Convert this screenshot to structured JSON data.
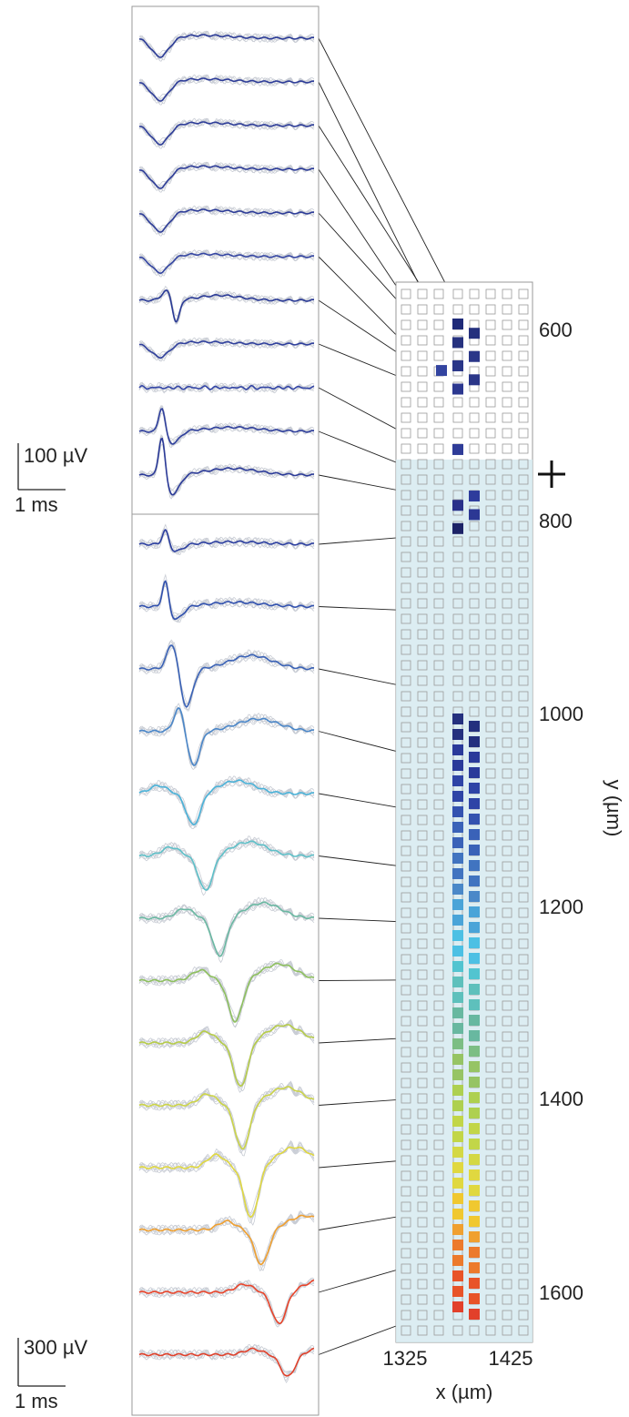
{
  "chart_data": {
    "type": "line",
    "description_free": true,
    "scale_bars": {
      "top": {
        "amplitude": "100 µV",
        "time": "1 ms"
      },
      "bottom": {
        "amplitude": "300 µV",
        "time": "1 ms"
      }
    },
    "probe_axes": {
      "xlabel": "x (µm)",
      "ylabel": "y (µm)",
      "x_ticks": [
        "1325",
        "1425"
      ],
      "y_ticks": [
        "600",
        "800",
        "1000",
        "1200",
        "1400",
        "1600"
      ],
      "ylim": [
        510,
        1650
      ]
    },
    "marker_depth_um": 740,
    "panels": [
      {
        "name": "upper",
        "traces": [
          {
            "depth_um": 560,
            "column": 1,
            "color": "#2a3a96",
            "shape": "broad",
            "amp": 0.35,
            "t": 0.12
          },
          {
            "depth_um": 585,
            "column": 0,
            "color": "#2d3c98",
            "shape": "broad",
            "amp": 0.35,
            "t": 0.12
          },
          {
            "depth_um": 595,
            "column": 1,
            "color": "#2d3c98",
            "shape": "broad",
            "amp": 0.35,
            "t": 0.12
          },
          {
            "depth_um": 605,
            "column": 0,
            "color": "#2d3c98",
            "shape": "broad",
            "amp": 0.35,
            "t": 0.12
          },
          {
            "depth_um": 615,
            "column": 1,
            "color": "#2d3c98",
            "shape": "broad",
            "amp": 0.35,
            "t": 0.12
          },
          {
            "depth_um": 610,
            "column": -1,
            "color": "#3445a2",
            "shape": "broad",
            "amp": 0.3,
            "t": 0.12
          },
          {
            "depth_um": 625,
            "column": 0,
            "color": "#2a3a96",
            "shape": "sharp",
            "amp": 0.45,
            "t": 0.16
          },
          {
            "depth_um": 635,
            "column": 0,
            "color": "#2f3f9c",
            "shape": "broad",
            "amp": 0.25,
            "t": 0.12
          },
          {
            "depth_um": 700,
            "column": 0,
            "color": "#3345a6",
            "shape": "noise",
            "amp": 0.15,
            "t": 0.12
          },
          {
            "depth_um": 735,
            "column": 1,
            "color": "#2f3f9c",
            "shape": "pos",
            "amp": 0.5,
            "t": 0.13
          },
          {
            "depth_um": 745,
            "column": 0,
            "color": "#2b3a98",
            "shape": "pos",
            "amp": 0.8,
            "t": 0.13
          }
        ]
      },
      {
        "name": "lower",
        "traces": [
          {
            "depth_um": 780,
            "column": 0,
            "color": "#2c3fa0",
            "shape": "pos",
            "amp": 0.25,
            "t": 0.15
          },
          {
            "depth_um": 865,
            "column": 0,
            "color": "#3050ae",
            "shape": "pos",
            "amp": 0.45,
            "t": 0.15
          },
          {
            "depth_um": 955,
            "column": 0,
            "color": "#3a62b6",
            "shape": "biphasic",
            "amp": 0.6,
            "t": 0.19
          },
          {
            "depth_um": 1030,
            "column": 0,
            "color": "#4a86c8",
            "shape": "biphasic",
            "amp": 0.55,
            "t": 0.23
          },
          {
            "depth_um": 1085,
            "column": 0,
            "color": "#4ab2d8",
            "shape": "neg",
            "amp": 0.5,
            "t": 0.31
          },
          {
            "depth_um": 1145,
            "column": 0,
            "color": "#5ec0c8",
            "shape": "neg",
            "amp": 0.55,
            "t": 0.38
          },
          {
            "depth_um": 1200,
            "column": 0,
            "color": "#6ab8a2",
            "shape": "neg",
            "amp": 0.6,
            "t": 0.46
          },
          {
            "depth_um": 1260,
            "column": 0,
            "color": "#8ec05e",
            "shape": "neg",
            "amp": 0.65,
            "t": 0.55
          },
          {
            "depth_um": 1320,
            "column": 0,
            "color": "#b6cc48",
            "shape": "neg",
            "amp": 0.7,
            "t": 0.58
          },
          {
            "depth_um": 1385,
            "column": 0,
            "color": "#ccd448",
            "shape": "neg",
            "amp": 0.7,
            "t": 0.59
          },
          {
            "depth_um": 1450,
            "column": 0,
            "color": "#e0d840",
            "shape": "neg",
            "amp": 0.8,
            "t": 0.64
          },
          {
            "depth_um": 1505,
            "column": 0,
            "color": "#f0a030",
            "shape": "neg",
            "amp": 0.55,
            "t": 0.7
          },
          {
            "depth_um": 1555,
            "column": 0,
            "color": "#e8442a",
            "shape": "neg",
            "amp": 0.5,
            "t": 0.8
          },
          {
            "depth_um": 1610,
            "column": 0,
            "color": "#e0402a",
            "shape": "neg",
            "amp": 0.35,
            "t": 0.85
          }
        ]
      }
    ],
    "active_sites": [
      {
        "depth_um": 555,
        "column": 0,
        "color": "#1f2a78"
      },
      {
        "depth_um": 565,
        "column": 1,
        "color": "#24307e"
      },
      {
        "depth_um": 575,
        "column": 0,
        "color": "#26327f"
      },
      {
        "depth_um": 590,
        "column": 1,
        "color": "#2a3688"
      },
      {
        "depth_um": 600,
        "column": 0,
        "color": "#2a3688"
      },
      {
        "depth_um": 605,
        "column": -1,
        "color": "#3344a0"
      },
      {
        "depth_um": 615,
        "column": 1,
        "color": "#2a3688"
      },
      {
        "depth_um": 625,
        "column": 0,
        "color": "#2c3890"
      },
      {
        "depth_um": 690,
        "column": 0,
        "color": "#2f3c98"
      },
      {
        "depth_um": 740,
        "column": 1,
        "color": "#2e3c9c"
      },
      {
        "depth_um": 750,
        "column": 0,
        "color": "#28308a"
      },
      {
        "depth_um": 760,
        "column": 1,
        "color": "#2c3894"
      },
      {
        "depth_um": 775,
        "column": 0,
        "color": "#1c2266"
      }
    ]
  }
}
